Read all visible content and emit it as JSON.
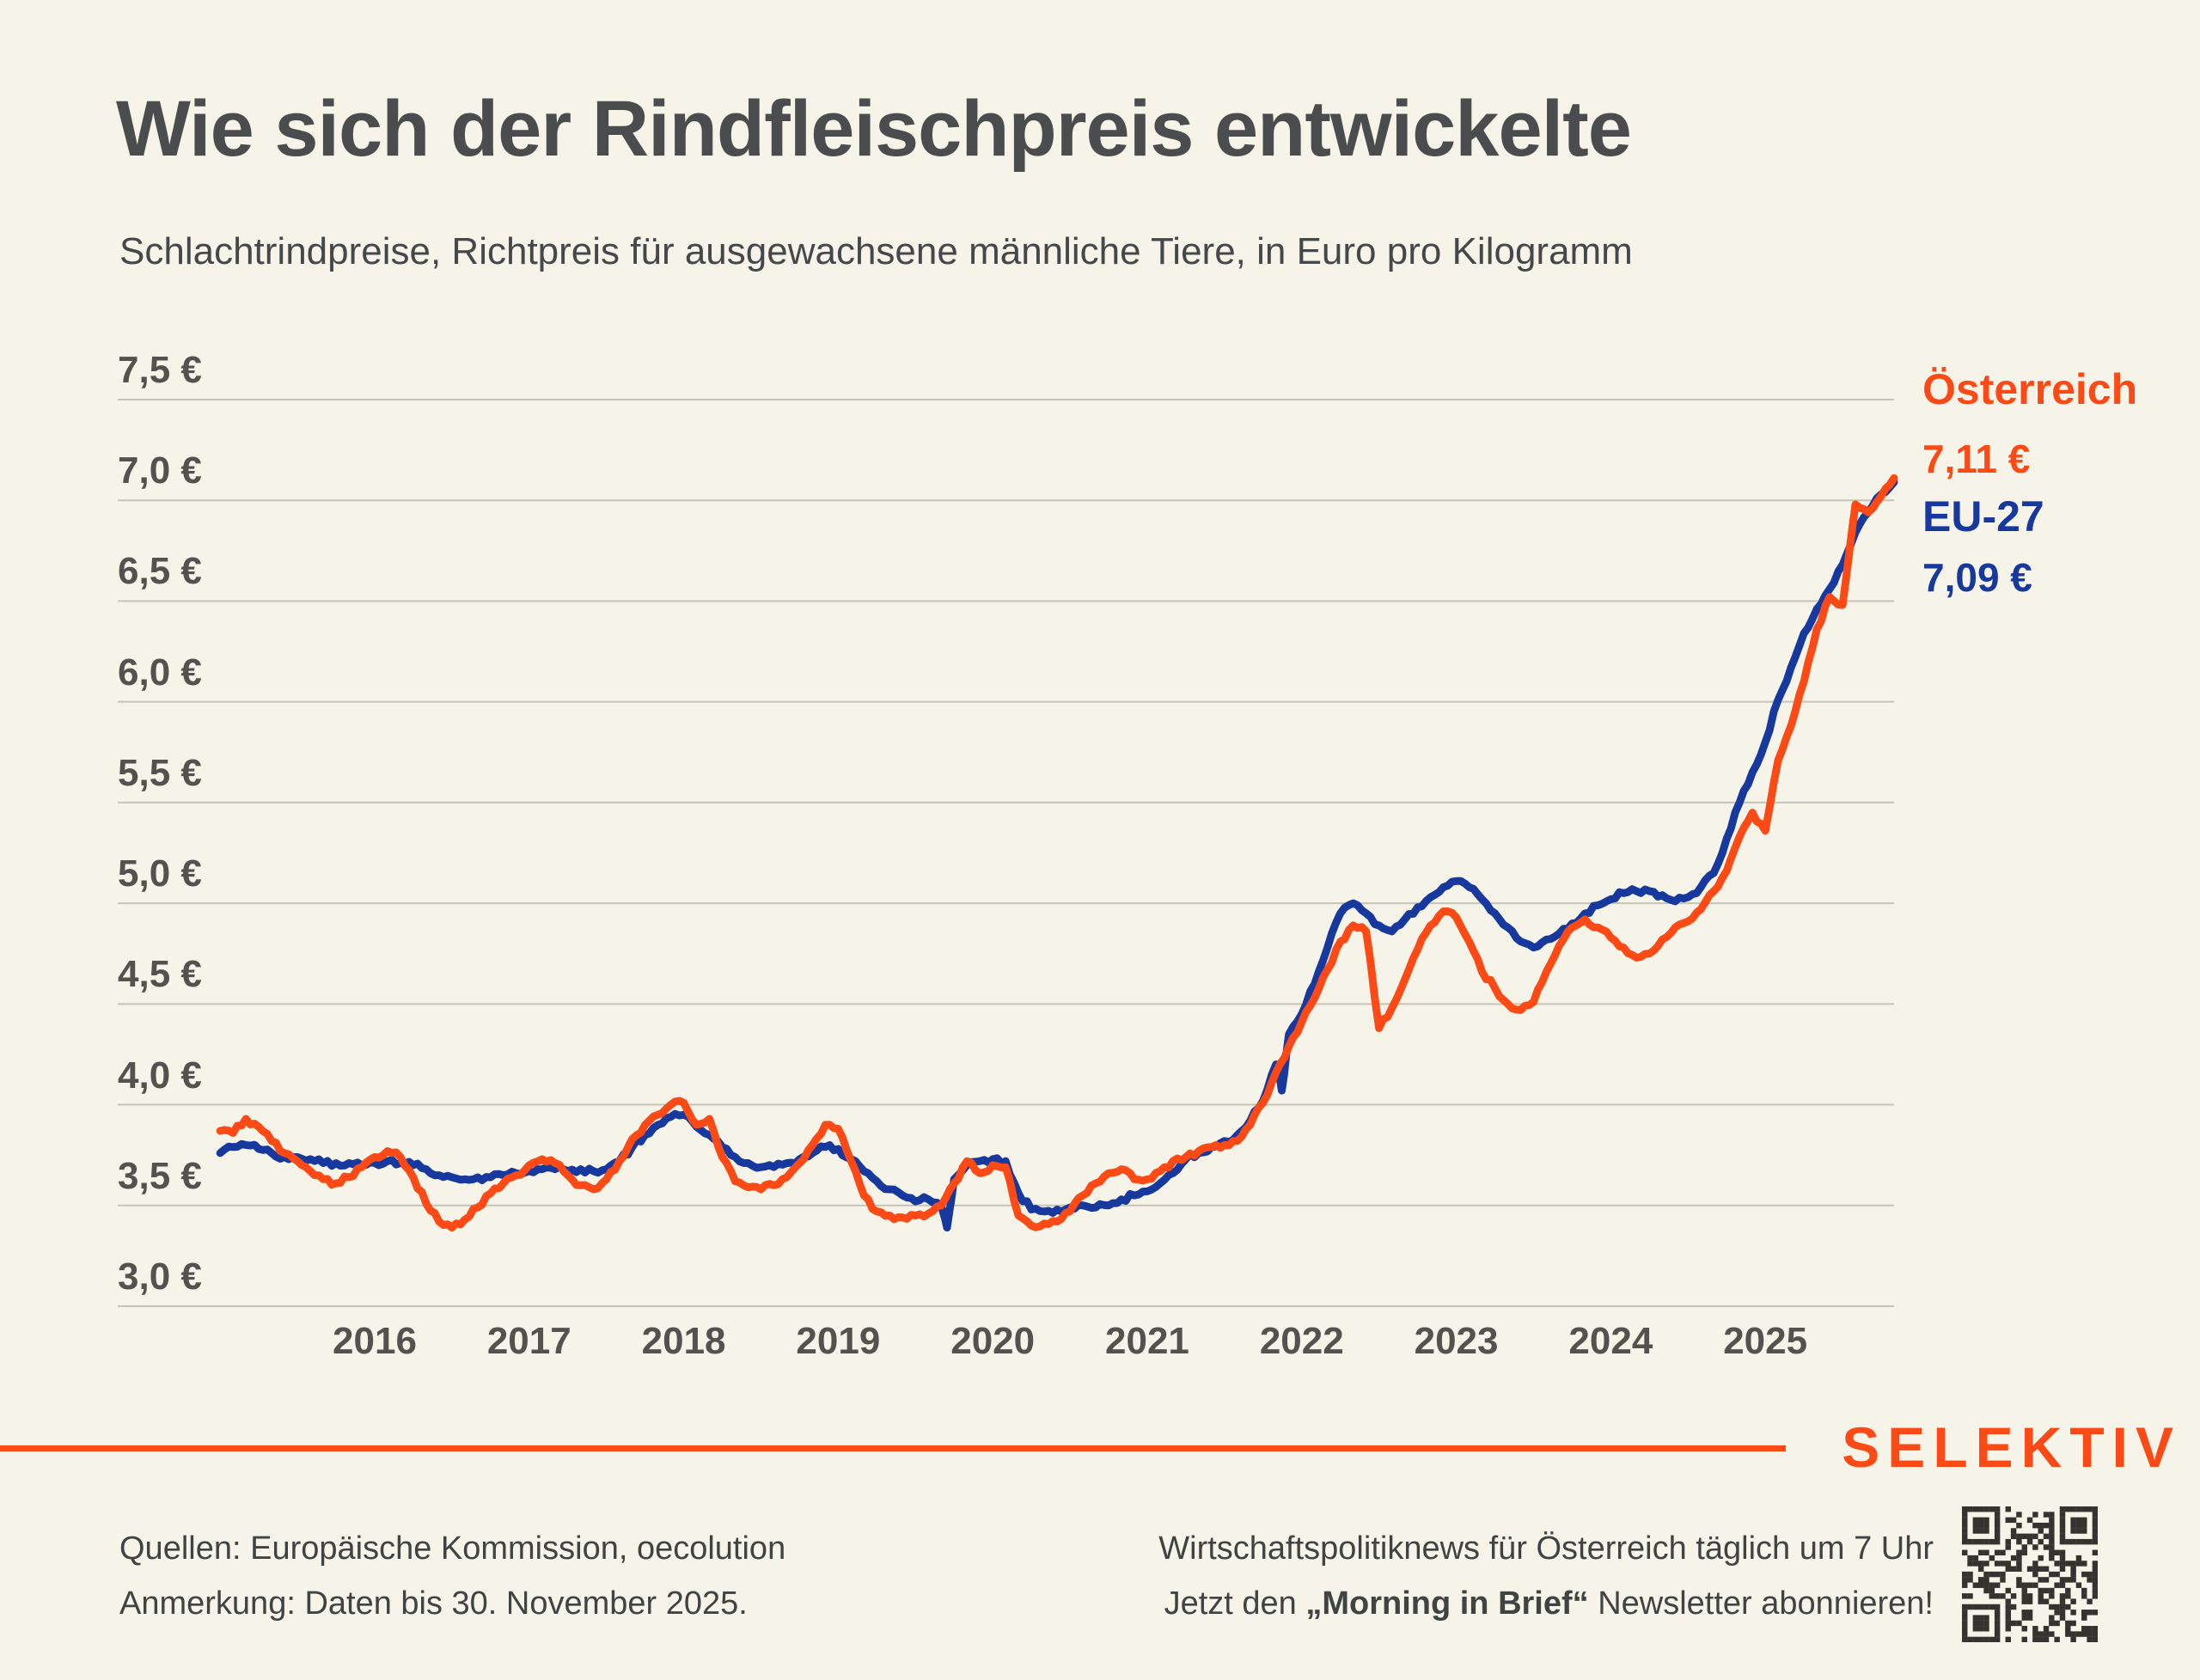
{
  "title": "Wie sich der Rindfleischpreis entwickelte",
  "subtitle": "Schlachtrindpreise, Richtpreis für ausgewachsene männliche Tiere, in Euro pro Kilogramm",
  "colors": {
    "background": "#F6F4E9",
    "accent_orange": "#FB4A15",
    "accent_blue": "#17399E",
    "gridline": "#C6C4B6",
    "text_dark": "#4B4C4E",
    "footer_text": "#3F4442",
    "qr_dark": "#34332F"
  },
  "chart_data": {
    "type": "line",
    "title": "Wie sich der Rindfleischpreis entwickelte",
    "subtitle": "Schlachtrindpreise, Richtpreis für ausgewachsene männliche Tiere, in Euro pro Kilogramm",
    "x_start": "2015-01",
    "x_end": "2025-11",
    "x_unit": "month",
    "ylim": [
      3.0,
      7.5
    ],
    "grid": "horizontal",
    "legend_position": "right-of-line-end",
    "y_ticks": [
      {
        "value": 7.5,
        "label": "7,5 €"
      },
      {
        "value": 7.0,
        "label": "7,0 €"
      },
      {
        "value": 6.5,
        "label": "6,5 €"
      },
      {
        "value": 6.0,
        "label": "6,0 €"
      },
      {
        "value": 5.5,
        "label": "5,5 €"
      },
      {
        "value": 5.0,
        "label": "5,0 €"
      },
      {
        "value": 4.5,
        "label": "4,5 €"
      },
      {
        "value": 4.0,
        "label": "4,0 €"
      },
      {
        "value": 3.5,
        "label": "3,5 €"
      },
      {
        "value": 3.0,
        "label": "3,0 €"
      }
    ],
    "x_ticks": [
      {
        "year": 2016,
        "label": "2016"
      },
      {
        "year": 2017,
        "label": "2017"
      },
      {
        "year": 2018,
        "label": "2018"
      },
      {
        "year": 2019,
        "label": "2019"
      },
      {
        "year": 2020,
        "label": "2020"
      },
      {
        "year": 2021,
        "label": "2021"
      },
      {
        "year": 2022,
        "label": "2022"
      },
      {
        "year": 2023,
        "label": "2023"
      },
      {
        "year": 2024,
        "label": "2024"
      },
      {
        "year": 2025,
        "label": "2025"
      }
    ],
    "series": [
      {
        "name": "EU-27",
        "color": "#17399E",
        "end_label": "7,09 €",
        "end_value": 7.09,
        "values": [
          3.76,
          3.79,
          3.8,
          3.78,
          3.76,
          3.74,
          3.74,
          3.73,
          3.71,
          3.71,
          3.71,
          3.7,
          3.71,
          3.72,
          3.71,
          3.7,
          3.68,
          3.65,
          3.64,
          3.63,
          3.64,
          3.64,
          3.65,
          3.66,
          3.67,
          3.68,
          3.68,
          3.67,
          3.68,
          3.67,
          3.68,
          3.72,
          3.79,
          3.85,
          3.9,
          3.94,
          3.95,
          3.89,
          3.85,
          3.79,
          3.74,
          3.71,
          3.69,
          3.69,
          3.71,
          3.73,
          3.76,
          3.79,
          3.78,
          3.73,
          3.67,
          3.62,
          3.58,
          3.55,
          3.52,
          3.53,
          3.5,
          3.63,
          3.7,
          3.72,
          3.73,
          3.72,
          3.56,
          3.48,
          3.47,
          3.48,
          3.49,
          3.5,
          3.49,
          3.5,
          3.53,
          3.55,
          3.57,
          3.61,
          3.66,
          3.73,
          3.76,
          3.79,
          3.82,
          3.85,
          3.92,
          4.02,
          4.2,
          4.35,
          4.45,
          4.6,
          4.78,
          4.95,
          5.0,
          4.95,
          4.89,
          4.86,
          4.92,
          4.98,
          5.03,
          5.08,
          5.11,
          5.08,
          5.02,
          4.95,
          4.88,
          4.81,
          4.78,
          4.82,
          4.85,
          4.9,
          4.95,
          4.99,
          5.02,
          5.05,
          5.06,
          5.06,
          5.04,
          5.01,
          5.03,
          5.08,
          5.15,
          5.32,
          5.5,
          5.65,
          5.8,
          6.01,
          6.17,
          6.34,
          6.46,
          6.56,
          6.68,
          6.84,
          6.94,
          7.03,
          7.09
        ],
        "dips": [
          {
            "date": "2019-09",
            "value": 3.39
          },
          {
            "date": "2021-11",
            "value": 4.07
          }
        ]
      },
      {
        "name": "Österreich",
        "color": "#FB4A15",
        "end_label": "7,11 €",
        "end_value": 7.11,
        "values": [
          3.87,
          3.86,
          3.93,
          3.89,
          3.82,
          3.76,
          3.72,
          3.67,
          3.63,
          3.61,
          3.64,
          3.69,
          3.74,
          3.77,
          3.74,
          3.64,
          3.51,
          3.42,
          3.39,
          3.43,
          3.49,
          3.56,
          3.61,
          3.65,
          3.7,
          3.73,
          3.71,
          3.65,
          3.6,
          3.58,
          3.63,
          3.72,
          3.83,
          3.9,
          3.95,
          4.0,
          4.01,
          3.9,
          3.93,
          3.74,
          3.62,
          3.59,
          3.58,
          3.6,
          3.64,
          3.71,
          3.8,
          3.9,
          3.88,
          3.72,
          3.55,
          3.47,
          3.45,
          3.44,
          3.45,
          3.46,
          3.5,
          3.61,
          3.72,
          3.66,
          3.7,
          3.69,
          3.45,
          3.4,
          3.41,
          3.42,
          3.47,
          3.55,
          3.61,
          3.66,
          3.68,
          3.63,
          3.63,
          3.67,
          3.72,
          3.74,
          3.77,
          3.79,
          3.8,
          3.82,
          3.9,
          4.01,
          4.16,
          4.29,
          4.41,
          4.53,
          4.67,
          4.81,
          4.89,
          4.86,
          4.38,
          4.48,
          4.62,
          4.77,
          4.89,
          4.96,
          4.93,
          4.81,
          4.66,
          4.58,
          4.5,
          4.47,
          4.51,
          4.66,
          4.79,
          4.88,
          4.92,
          4.88,
          4.83,
          4.78,
          4.73,
          4.75,
          4.82,
          4.88,
          4.91,
          4.97,
          5.06,
          5.16,
          5.33,
          5.45,
          5.36,
          5.71,
          5.88,
          6.1,
          6.36,
          6.52,
          6.48,
          6.98,
          6.94,
          7.02,
          7.11
        ],
        "dips": []
      }
    ]
  },
  "legend": {
    "austria_name": "Österreich",
    "austria_value": "7,11 €",
    "eu_name": "EU-27",
    "eu_value": "7,09 €"
  },
  "footer": {
    "brand": "SELEKTIV",
    "sources_line": "Quellen: Europäische Kommission, oecolution",
    "note_line": "Anmerkung: Daten bis 30. November 2025.",
    "promo_line1": "Wirtschaftspolitiknews für Österreich täglich um 7 Uhr",
    "promo_line2_prefix": "Jetzt den ",
    "promo_line2_bold": "„Morning in Brief“",
    "promo_line2_suffix": " Newsletter abonnieren!"
  }
}
